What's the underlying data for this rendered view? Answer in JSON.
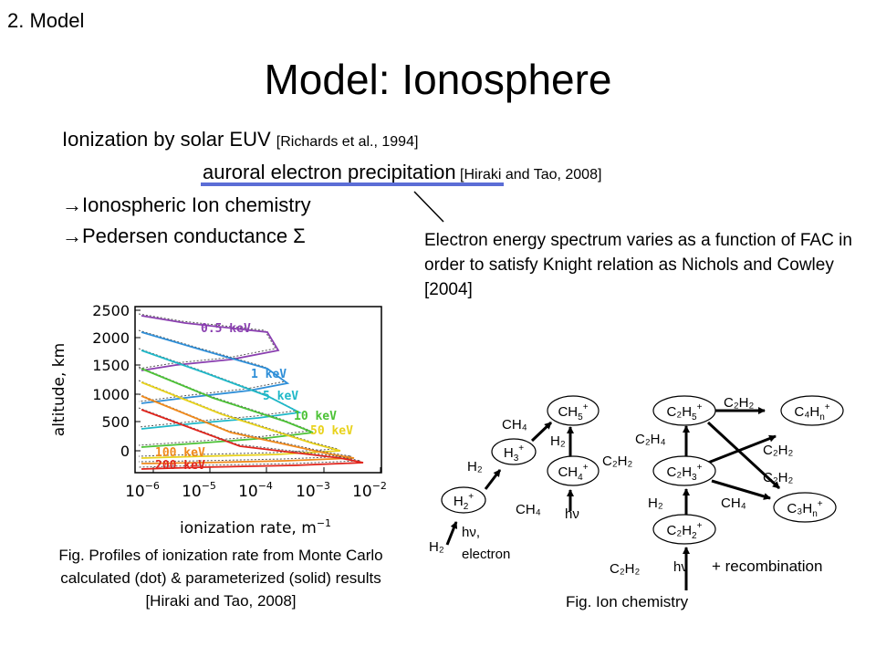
{
  "section_label": "2. Model",
  "title": "Model: Ionosphere",
  "bullets": {
    "b1_main": "Ionization by solar EUV ",
    "b1_ref": "[Richards et al., 1994]",
    "b2_main": "auroral electron precipitation",
    "b2_ref": " [Hiraki and Tao, 2008]",
    "b3": "→Ionospheric Ion chemistry",
    "b4": "→Pedersen conductance Σ"
  },
  "note": "Electron energy spectrum varies as a function of FAC in order to satisfy Knight relation as Nichols and Cowley [2004]",
  "plot": {
    "ylabel": "altitude, km",
    "xlabel": "ionization rate, m",
    "xlabel_sup": "−1",
    "yticks": [
      "2500",
      "2000",
      "1500",
      "1000",
      "500",
      "0"
    ],
    "xticks": [
      "10",
      "10",
      "10",
      "10",
      "10"
    ],
    "xtick_exps": [
      "−6",
      "−5",
      "−4",
      "−3",
      "−2"
    ],
    "series": [
      {
        "label": "0.5 keV",
        "color": "#8a3fb0"
      },
      {
        "label": "1 keV",
        "color": "#2f8fd8"
      },
      {
        "label": "5 keV",
        "color": "#1fb8c8"
      },
      {
        "label": "10 keV",
        "color": "#4cc236"
      },
      {
        "label": "50 keV",
        "color": "#e8d21c"
      },
      {
        "label": "100 keV",
        "color": "#f08a1c"
      },
      {
        "label": "200 keV",
        "color": "#e0241c"
      }
    ]
  },
  "caption_left": "Fig. Profiles of ionization rate from Monte Carlo calculated (dot)  & parameterized (solid) results [Hiraki and Tao, 2008]",
  "caption_right": "Fig. Ion chemistry",
  "recombination": "+ recombination",
  "chem": {
    "nodes": {
      "h2p": {
        "main": "H",
        "sub": "2",
        "sup": "+"
      },
      "h3p": {
        "main": "H",
        "sub": "3",
        "sup": "+"
      },
      "ch5p": {
        "main": "CH",
        "sub": "5",
        "sup": "+"
      },
      "ch4p": {
        "main": "CH",
        "sub": "4",
        "sup": "+"
      },
      "c2h5p": {
        "main": "C₂H",
        "sub": "5",
        "sup": "+"
      },
      "c2h3p": {
        "main": "C₂H",
        "sub": "3",
        "sup": "+"
      },
      "c2h2p": {
        "main": "C₂H",
        "sub": "2",
        "sup": "+"
      },
      "c4hnp": {
        "main": "C₄H",
        "sub": "n",
        "sup": "+"
      },
      "c3hnp": {
        "main": "C₃H",
        "sub": "n",
        "sup": "+"
      }
    },
    "labels": {
      "h2_bottom": "H₂",
      "hv_electron_1": "hν,",
      "hv_electron_2": "electron",
      "h2_mid": "H₂",
      "ch4_top": "CH₄",
      "h2_ch5": "H₂",
      "c2h2_mid": "C₂H₂",
      "ch4_bottom": "CH₄",
      "hv_ch4": "hν",
      "c2h4": "C₂H₄",
      "h2_c2h3": "H₂",
      "c2h2_top": "C₂H₂",
      "c2h2_right1": "C₂H₂",
      "c2h2_right2": "C₂H₂",
      "ch4_right": "CH₄",
      "c2h2_bottom": "C₂H₂",
      "hv_bottom": "hν"
    }
  }
}
